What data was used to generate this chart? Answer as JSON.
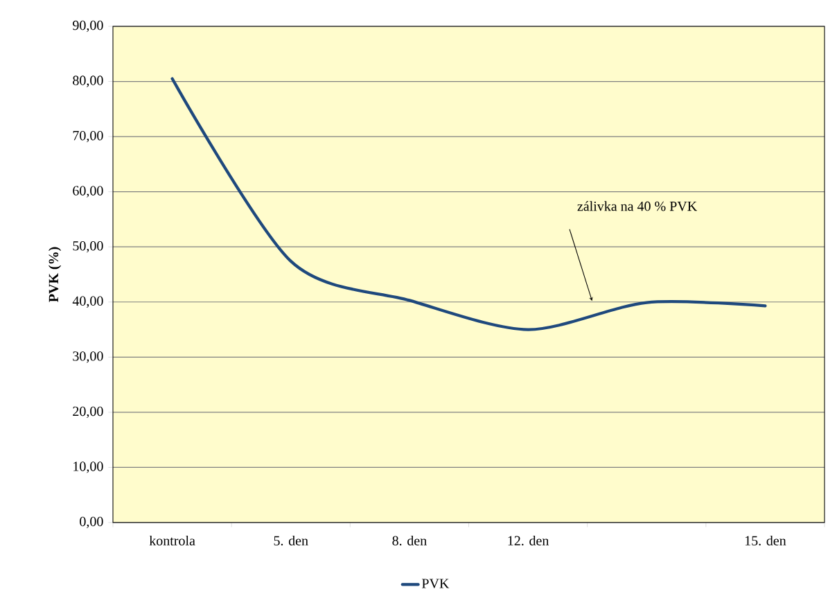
{
  "chart_data": {
    "type": "line",
    "ylabel": "PVK (%)",
    "categories": [
      "kontrola",
      "5. den",
      "8. den",
      "12. den",
      null,
      "15. den"
    ],
    "series": [
      {
        "name": "PVK",
        "color": "#1f497d",
        "values": [
          80.5,
          47.4,
          40.3,
          35.0,
          39.9,
          39.3
        ]
      }
    ],
    "ylim": [
      0,
      90
    ],
    "yticks": [
      {
        "value": 0,
        "label": "0,00"
      },
      {
        "value": 10,
        "label": "10,00"
      },
      {
        "value": 20,
        "label": "20,00"
      },
      {
        "value": 30,
        "label": "30,00"
      },
      {
        "value": 40,
        "label": "40,00"
      },
      {
        "value": 50,
        "label": "50,00"
      },
      {
        "value": 60,
        "label": "60,00"
      },
      {
        "value": 70,
        "label": "70,00"
      },
      {
        "value": 80,
        "label": "80,00"
      },
      {
        "value": 90,
        "label": "90,00"
      }
    ],
    "annotations": [
      "zálivka na 40 % PVK"
    ],
    "grid": "y",
    "legend": "bottom",
    "marker": "none",
    "line_style": "solid"
  }
}
